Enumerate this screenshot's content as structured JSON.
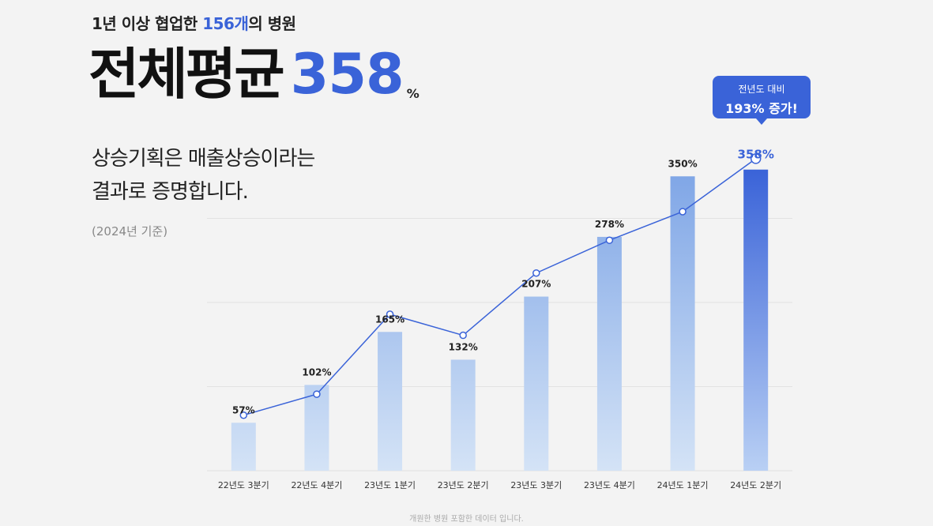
{
  "header": {
    "subtitle_pre": "1년 이상 협업한 ",
    "subtitle_hl": "156개",
    "subtitle_post": "의 병원",
    "headline_text": "전체평균",
    "headline_value": "358",
    "headline_unit": "%"
  },
  "description": {
    "line1": "상승기획은 매출상승이라는",
    "line2": "결과로 증명합니다."
  },
  "basis": "(2024년 기준)",
  "callout": {
    "line1": "전년도 대비",
    "line2": "193% 증가!"
  },
  "footnote": "개원한 병원 포함한 데이터 입니다.",
  "colors": {
    "accent": "#3a63d8",
    "bar_light": "#d4e3f6",
    "bar_mid": "#7ea5e6",
    "line": "#3a63d8"
  },
  "chart_data": {
    "type": "bar",
    "categories": [
      "22년도 3분기",
      "22년도 4분기",
      "23년도 1분기",
      "23년도 2분기",
      "23년도 3분기",
      "23년도 4분기",
      "24년도 1분기",
      "24년도 2분기"
    ],
    "values": [
      57,
      102,
      165,
      132,
      207,
      278,
      350,
      358
    ],
    "data_labels": [
      "57%",
      "102%",
      "165%",
      "132%",
      "207%",
      "278%",
      "350%",
      "358%"
    ],
    "ylim": [
      0,
      400
    ],
    "grid": true,
    "overlay_line": {
      "type": "line",
      "values": [
        66,
        91,
        186,
        161,
        235,
        274,
        308,
        371
      ]
    },
    "xlabel": "",
    "ylabel": ""
  }
}
